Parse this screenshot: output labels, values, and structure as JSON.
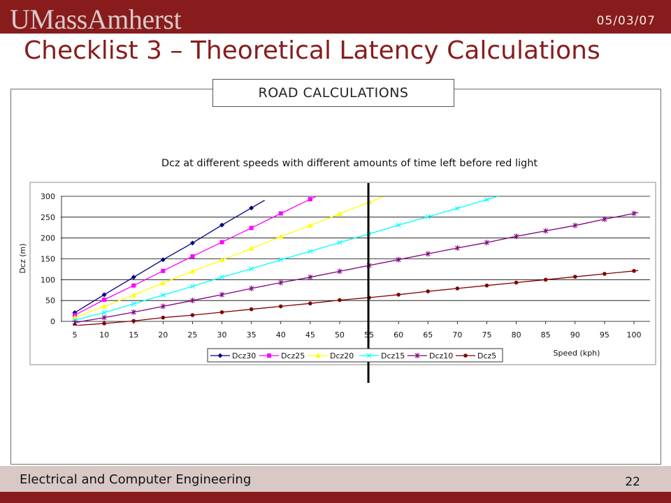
{
  "header": {
    "logo_text": "UMassAmherst",
    "date": "05/03/07",
    "slide_title": "Checklist 3 – Theoretical Latency Calculations"
  },
  "tab": {
    "label": "ROAD CALCULATIONS"
  },
  "footer": {
    "department": "Electrical and Computer Engineering",
    "page_number": "22"
  },
  "colors": {
    "brand": "#881c1c",
    "footer_band": "#d8c9c6"
  },
  "chart_data": {
    "type": "line",
    "title": "Dcz at different speeds with different amounts of time left before red light",
    "xlabel": "Speed (kph)",
    "ylabel": "Dcz (m)",
    "x": [
      5,
      10,
      15,
      20,
      25,
      30,
      35,
      40,
      45,
      50,
      55,
      60,
      65,
      70,
      75,
      80,
      85,
      90,
      95,
      100
    ],
    "xlim": [
      5,
      100
    ],
    "ylim": [
      0,
      300
    ],
    "yticks": [
      0,
      50,
      100,
      150,
      200,
      250,
      300
    ],
    "grid": "horizontal",
    "legend_position": "bottom",
    "marker_line_speed": 55,
    "series": [
      {
        "name": "Dcz30",
        "color": "#000080",
        "marker": "diamond",
        "x": [
          5,
          10,
          15,
          20,
          25,
          30,
          35
        ],
        "values": [
          21,
          64,
          106,
          148,
          188,
          231,
          272
        ]
      },
      {
        "name": "Dcz25",
        "color": "#ff00ff",
        "marker": "square",
        "x": [
          5,
          10,
          15,
          20,
          25,
          30,
          35,
          40,
          45
        ],
        "values": [
          15,
          52,
          86,
          121,
          156,
          190,
          224,
          259,
          293
        ]
      },
      {
        "name": "Dcz20",
        "color": "#ffff00",
        "marker": "triangle",
        "x": [
          5,
          10,
          15,
          20,
          25,
          30,
          35,
          40,
          45,
          50,
          55
        ],
        "values": [
          9,
          36,
          63,
          92,
          120,
          147,
          175,
          203,
          230,
          258,
          286
        ]
      },
      {
        "name": "Dcz15",
        "color": "#00ffff",
        "marker": "x",
        "x": [
          5,
          10,
          15,
          20,
          25,
          30,
          35,
          40,
          45,
          50,
          55,
          60,
          65,
          70,
          75
        ],
        "values": [
          3,
          21,
          42,
          63,
          84,
          106,
          126,
          148,
          168,
          189,
          210,
          231,
          251,
          271,
          292
        ]
      },
      {
        "name": "Dcz10",
        "color": "#800080",
        "marker": "star",
        "x": [
          5,
          10,
          15,
          20,
          25,
          30,
          35,
          40,
          45,
          50,
          55,
          60,
          65,
          70,
          75,
          80,
          85,
          90,
          95,
          100
        ],
        "values": [
          -3,
          9,
          22,
          36,
          50,
          64,
          79,
          93,
          106,
          120,
          134,
          148,
          162,
          176,
          189,
          204,
          217,
          230,
          245,
          259
        ]
      },
      {
        "name": "Dcz5",
        "color": "#800000",
        "marker": "circle",
        "x": [
          5,
          10,
          15,
          20,
          25,
          30,
          35,
          40,
          45,
          50,
          55,
          60,
          65,
          70,
          75,
          80,
          85,
          90,
          95,
          100
        ],
        "values": [
          -10,
          -5,
          1,
          9,
          15,
          22,
          29,
          36,
          43,
          51,
          57,
          64,
          72,
          79,
          86,
          93,
          100,
          107,
          114,
          121
        ]
      }
    ]
  }
}
